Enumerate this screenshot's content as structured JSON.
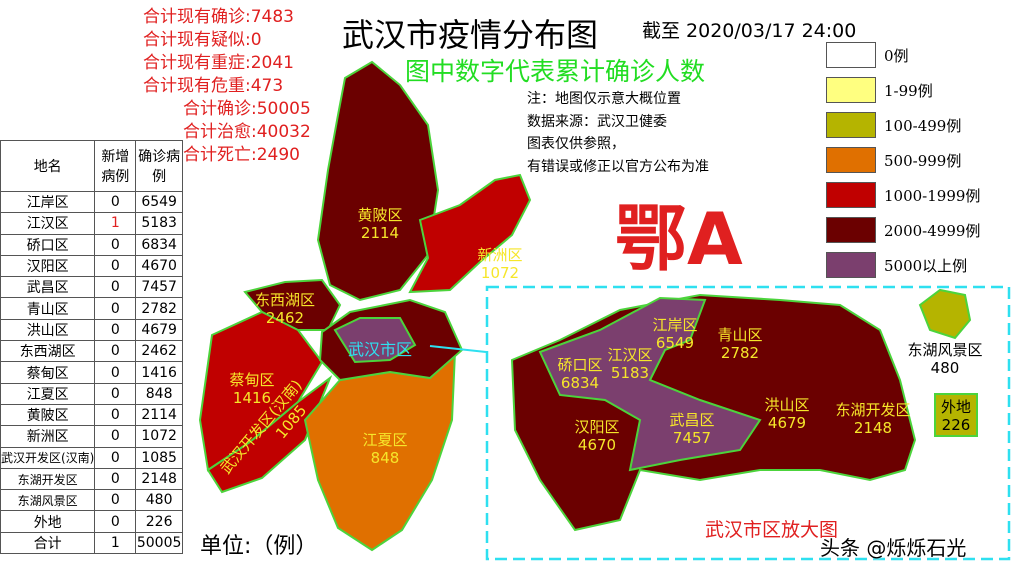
{
  "title": "武汉市疫情分布图",
  "as_of": "截至 2020/03/17 24:00",
  "subtitle": "图中数字代表累计确诊人数",
  "stats": [
    "合计现有确诊:7483",
    "合计现有疑似:0",
    "合计现有重症:2041",
    "合计现有危重:473",
    "合计确诊:50005",
    "合计治愈:40032",
    "合计死亡:2490"
  ],
  "notes": [
    "注：地图仅示意大概位置",
    "数据来源：武汉卫健委",
    "图表仅供参照，",
    "有错误或修正以官方公布为准"
  ],
  "legend": [
    {
      "label": "0例",
      "color": "#ffffff"
    },
    {
      "label": "1-99例",
      "color": "#ffff80"
    },
    {
      "label": "100-499例",
      "color": "#b5b400"
    },
    {
      "label": "500-999例",
      "color": "#e07000"
    },
    {
      "label": "1000-1999例",
      "color": "#c00000"
    },
    {
      "label": "2000-4999例",
      "color": "#6b0000"
    },
    {
      "label": "5000以上例",
      "color": "#7b3f6e"
    }
  ],
  "plate": "鄂A",
  "unit": "单位:（例）",
  "watermark": "头条 @烁烁石光",
  "inset_title": "武汉市区放大图",
  "city_label": "武汉市区",
  "table": {
    "headers": [
      "地名",
      "新增病例",
      "确诊病例"
    ],
    "rows": [
      [
        "江岸区",
        "0",
        "6549"
      ],
      [
        "江汉区",
        "1",
        "5183"
      ],
      [
        "硚口区",
        "0",
        "6834"
      ],
      [
        "汉阳区",
        "0",
        "4670"
      ],
      [
        "武昌区",
        "0",
        "7457"
      ],
      [
        "青山区",
        "0",
        "2782"
      ],
      [
        "洪山区",
        "0",
        "4679"
      ],
      [
        "东西湖区",
        "0",
        "2462"
      ],
      [
        "蔡甸区",
        "0",
        "1416"
      ],
      [
        "江夏区",
        "0",
        "848"
      ],
      [
        "黄陂区",
        "0",
        "2114"
      ],
      [
        "新洲区",
        "0",
        "1072"
      ],
      [
        "武汉开发区(汉南)",
        "0",
        "1085"
      ],
      [
        "东湖开发区",
        "0",
        "2148"
      ],
      [
        "东湖风景区",
        "0",
        "480"
      ],
      [
        "外地",
        "0",
        "226"
      ],
      [
        "合计",
        "1",
        "50005"
      ]
    ]
  },
  "map": {
    "huangpi": {
      "name": "黄陂区",
      "value": "2114"
    },
    "xinzhou": {
      "name": "新洲区",
      "value": "1072"
    },
    "dongxihu": {
      "name": "东西湖区",
      "value": "2462"
    },
    "caidian": {
      "name": "蔡甸区",
      "value": "1416"
    },
    "hannan": {
      "name": "武汉开发区(汉南)",
      "value": "1085"
    },
    "jiangxia": {
      "name": "江夏区",
      "value": "848"
    },
    "qiaokou": {
      "name": "硚口区",
      "value": "6834"
    },
    "jianghan": {
      "name": "江汉区",
      "value": "5183"
    },
    "jiangan": {
      "name": "江岸区",
      "value": "6549"
    },
    "qingshan": {
      "name": "青山区",
      "value": "2782"
    },
    "hanyang": {
      "name": "汉阳区",
      "value": "4670"
    },
    "wuchang": {
      "name": "武昌区",
      "value": "7457"
    },
    "hongshan": {
      "name": "洪山区",
      "value": "4679"
    },
    "donghukf": {
      "name": "东湖开发区",
      "value": "2148"
    },
    "donghufj": {
      "name": "东湖风景区",
      "value": "480"
    },
    "waidi": {
      "name": "外地",
      "value": "226"
    }
  }
}
